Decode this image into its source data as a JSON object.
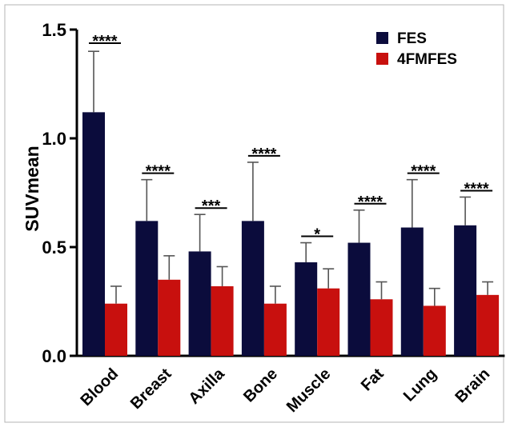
{
  "chart_data": {
    "type": "bar",
    "title": "",
    "xlabel": "",
    "ylabel": "SUVmean",
    "ylim": [
      0,
      1.5
    ],
    "yticks": [
      0.0,
      0.5,
      1.0,
      1.5
    ],
    "ytick_labels": [
      "0.0",
      "0.5",
      "1.0",
      "1.5"
    ],
    "categories": [
      "Blood",
      "Breast",
      "Axilla",
      "Bone",
      "Muscle",
      "Fat",
      "Lung",
      "Brain"
    ],
    "series": [
      {
        "name": "FES",
        "color": "#0b0c3c",
        "values": [
          1.12,
          0.62,
          0.48,
          0.62,
          0.43,
          0.52,
          0.59,
          0.6
        ],
        "error_upper": [
          1.4,
          0.81,
          0.65,
          0.89,
          0.52,
          0.67,
          0.81,
          0.73
        ]
      },
      {
        "name": "4FMFES",
        "color": "#c8100e",
        "values": [
          0.24,
          0.35,
          0.32,
          0.24,
          0.31,
          0.26,
          0.23,
          0.28
        ],
        "error_upper": [
          0.32,
          0.46,
          0.41,
          0.32,
          0.4,
          0.34,
          0.31,
          0.34
        ]
      }
    ],
    "significance": [
      "****",
      "****",
      "***",
      "****",
      "*",
      "****",
      "****",
      "****"
    ],
    "legend_position": "top-right",
    "grid": false
  }
}
